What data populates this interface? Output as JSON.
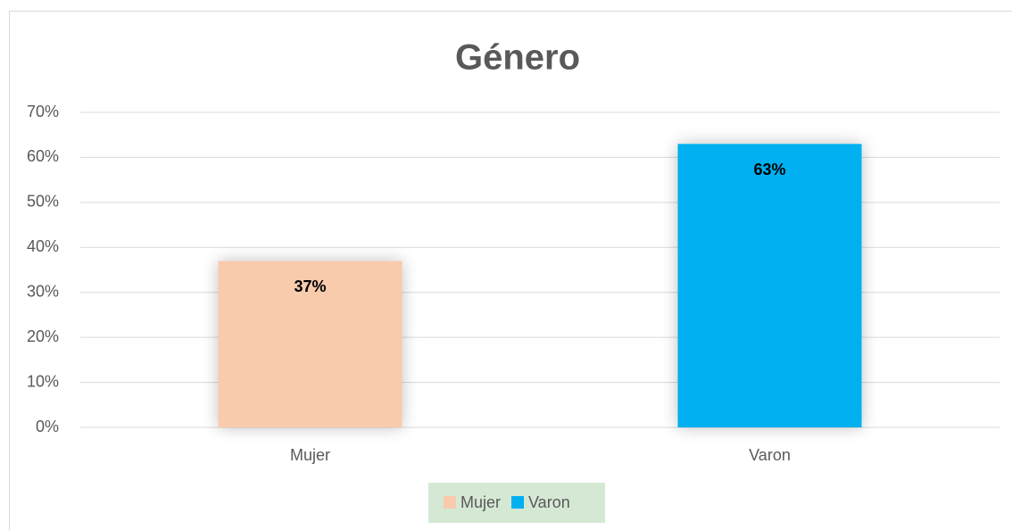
{
  "chart_data": {
    "type": "bar",
    "title": "Género",
    "categories": [
      "Mujer",
      "Varon"
    ],
    "values": [
      37,
      63
    ],
    "value_labels": [
      "37%",
      "63%"
    ],
    "colors": [
      "#f8cbad",
      "#00b0f0"
    ],
    "ylim": [
      0,
      70
    ],
    "yticks": [
      {
        "value": 0,
        "label": "0%"
      },
      {
        "value": 10,
        "label": "10%"
      },
      {
        "value": 20,
        "label": "20%"
      },
      {
        "value": 30,
        "label": "30%"
      },
      {
        "value": 40,
        "label": "40%"
      },
      {
        "value": 50,
        "label": "50%"
      },
      {
        "value": 60,
        "label": "60%"
      },
      {
        "value": 70,
        "label": "70%"
      }
    ],
    "grid": true,
    "legend": "bottom"
  }
}
